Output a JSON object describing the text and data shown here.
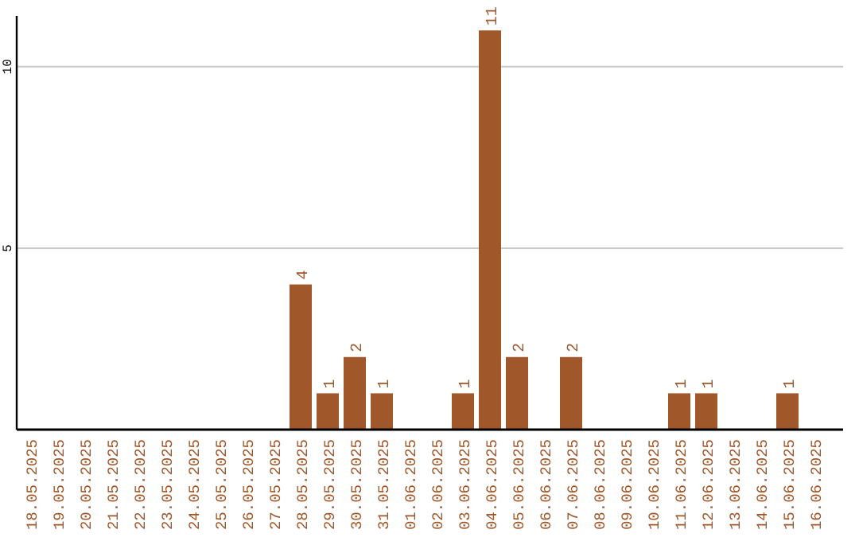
{
  "chart_data": {
    "type": "bar",
    "categories": [
      "18.05.2025",
      "19.05.2025",
      "20.05.2025",
      "21.05.2025",
      "22.05.2025",
      "23.05.2025",
      "24.05.2025",
      "25.05.2025",
      "26.05.2025",
      "27.05.2025",
      "28.05.2025",
      "29.05.2025",
      "30.05.2025",
      "31.05.2025",
      "01.06.2025",
      "02.06.2025",
      "03.06.2025",
      "04.06.2025",
      "05.06.2025",
      "06.06.2025",
      "07.06.2025",
      "08.06.2025",
      "09.06.2025",
      "10.06.2025",
      "11.06.2025",
      "12.06.2025",
      "13.06.2025",
      "14.06.2025",
      "15.06.2025",
      "16.06.2025"
    ],
    "values": [
      0,
      0,
      0,
      0,
      0,
      0,
      0,
      0,
      0,
      0,
      4,
      1,
      2,
      1,
      0,
      0,
      1,
      11,
      2,
      0,
      2,
      0,
      0,
      0,
      1,
      1,
      0,
      0,
      1,
      0
    ],
    "value_labels": [
      null,
      null,
      null,
      null,
      null,
      null,
      null,
      null,
      null,
      null,
      "4",
      "1",
      "2",
      "1",
      null,
      null,
      "1",
      "11",
      "2",
      null,
      "2",
      null,
      null,
      null,
      "1",
      "1",
      null,
      null,
      "1",
      null
    ],
    "color": "#a0572a",
    "ylim": [
      0,
      11.4
    ],
    "yticks": [
      5,
      10
    ],
    "grid": "y"
  }
}
